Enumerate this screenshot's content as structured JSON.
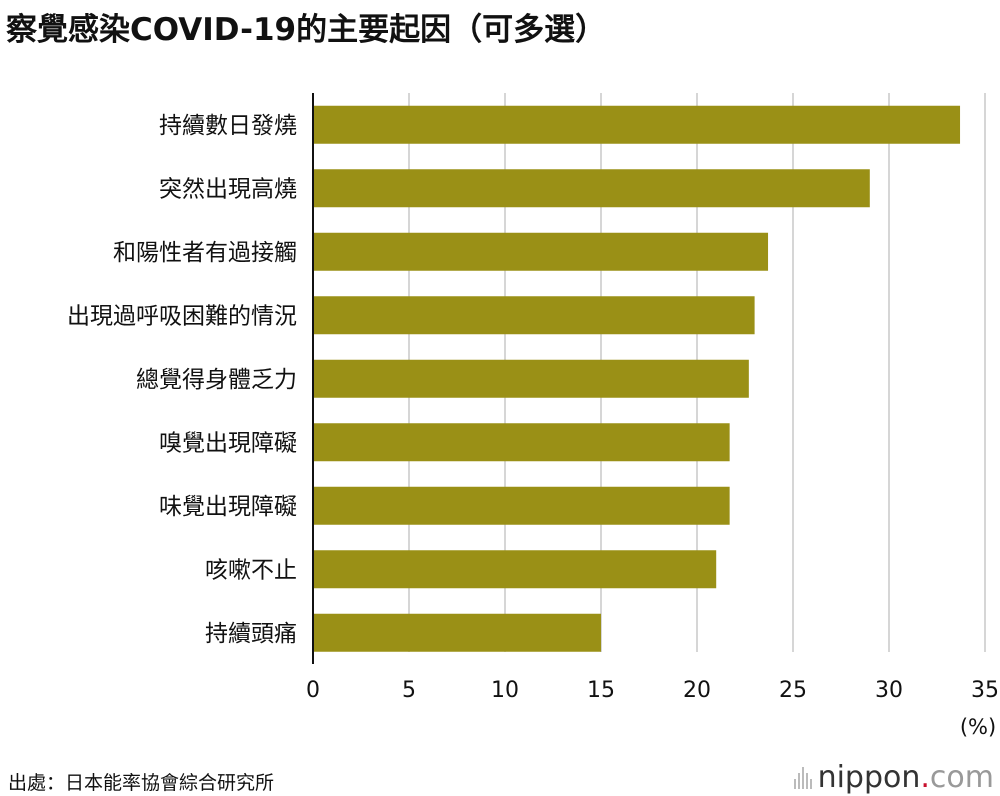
{
  "title": "察覺感染COVID-19的主要起因（可多選）",
  "source": "出處：日本能率協會綜合研究所",
  "logo": {
    "brand": "nippon",
    "dot": ".",
    "tld": "com"
  },
  "colors": {
    "bar": "#9a9016",
    "grid": "#d6d6d6",
    "axis": "#111111"
  },
  "chart_data": {
    "type": "bar",
    "orientation": "horizontal",
    "categories": [
      "持續數日發燒",
      "突然出現高燒",
      "和陽性者有過接觸",
      "出現過呼吸困難的情況",
      "總覺得身體乏力",
      "嗅覺出現障礙",
      "味覺出現障礙",
      "咳嗽不止",
      "持續頭痛"
    ],
    "values": [
      33.7,
      29.0,
      23.7,
      23.0,
      22.7,
      21.7,
      21.7,
      21.0,
      15.0
    ],
    "xlim": [
      0,
      35
    ],
    "xticks": [
      0,
      5,
      10,
      15,
      20,
      25,
      30,
      35
    ],
    "unit_label": "(%)",
    "grid": true
  }
}
